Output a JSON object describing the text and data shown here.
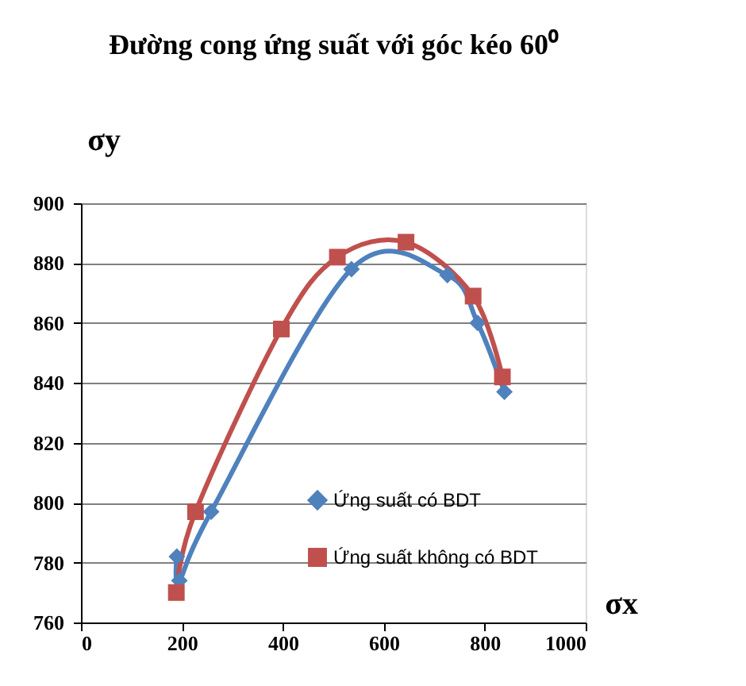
{
  "chart_data": {
    "type": "line",
    "title": "Đường cong ứng suất với góc kéo 60⁰",
    "xlabel": "σx",
    "ylabel": "σy",
    "xlim": [
      0,
      1000
    ],
    "xticks": [
      0,
      200,
      400,
      600,
      800,
      1000
    ],
    "ylim": [
      760,
      900
    ],
    "yticks": [
      760,
      780,
      800,
      820,
      840,
      860,
      880,
      900
    ],
    "grid": "y",
    "legend": "bottom right",
    "series": [
      {
        "name": "Ứng suất có BDT",
        "color": "#4f81bd",
        "marker": "diamond",
        "x": [
          190,
          195,
          258,
          536,
          726,
          786,
          839
        ],
        "values": [
          782,
          774,
          797,
          878,
          876,
          860,
          837
        ]
      },
      {
        "name": "Ứng suất không có BDT",
        "color": "#c0504d",
        "marker": "square",
        "x": [
          189,
          227,
          397,
          508,
          644,
          777,
          835
        ],
        "values": [
          770,
          797,
          858,
          882,
          887,
          869,
          842
        ]
      }
    ]
  }
}
